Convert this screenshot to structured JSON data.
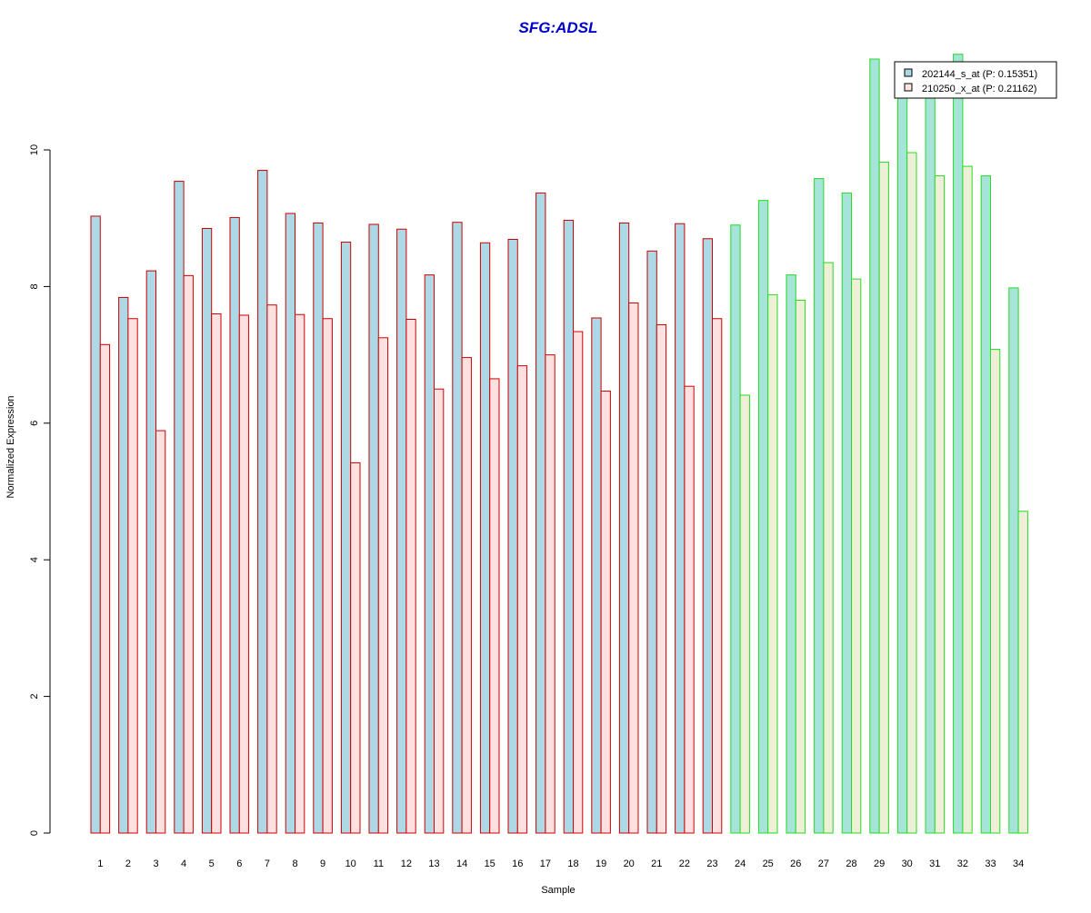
{
  "chart_data": {
    "type": "bar",
    "title": "SFG:ADSL",
    "xlabel": "Sample",
    "ylabel": "Normalized Expression",
    "ylim": [
      0,
      11.5
    ],
    "yticks": [
      0,
      2,
      4,
      6,
      8,
      10
    ],
    "categories": [
      "1",
      "2",
      "3",
      "4",
      "5",
      "6",
      "7",
      "8",
      "9",
      "10",
      "11",
      "12",
      "13",
      "14",
      "15",
      "16",
      "17",
      "18",
      "19",
      "20",
      "21",
      "22",
      "23",
      "24",
      "25",
      "26",
      "27",
      "28",
      "29",
      "30",
      "31",
      "32",
      "33",
      "34"
    ],
    "group_border_colors": [
      "#cc0000",
      "#cc0000",
      "#cc0000",
      "#cc0000",
      "#cc0000",
      "#cc0000",
      "#cc0000",
      "#cc0000",
      "#cc0000",
      "#cc0000",
      "#cc0000",
      "#cc0000",
      "#cc0000",
      "#cc0000",
      "#cc0000",
      "#cc0000",
      "#cc0000",
      "#cc0000",
      "#cc0000",
      "#cc0000",
      "#cc0000",
      "#cc0000",
      "#cc0000",
      "#22dd22",
      "#22dd22",
      "#22dd22",
      "#22dd22",
      "#22dd22",
      "#22dd22",
      "#22dd22",
      "#22dd22",
      "#22dd22",
      "#22dd22",
      "#22dd22"
    ],
    "series": [
      {
        "name": "202144_s_at (P: 0.15351)",
        "colors": [
          "#add8e6",
          "#add8e6",
          "#add8e6",
          "#add8e6",
          "#add8e6",
          "#add8e6",
          "#add8e6",
          "#add8e6",
          "#add8e6",
          "#add8e6",
          "#add8e6",
          "#add8e6",
          "#add8e6",
          "#add8e6",
          "#add8e6",
          "#add8e6",
          "#add8e6",
          "#add8e6",
          "#add8e6",
          "#add8e6",
          "#add8e6",
          "#add8e6",
          "#add8e6",
          "#a6e3d9",
          "#a6e3d9",
          "#a6e3d9",
          "#a6e3d9",
          "#a6e3d9",
          "#a6e3d9",
          "#a6e3d9",
          "#a6e3d9",
          "#a6e3d9",
          "#a6e3d9",
          "#a6e3d9"
        ],
        "legend_color": "#add8e6",
        "values": [
          9.03,
          7.84,
          8.23,
          9.54,
          8.85,
          9.01,
          9.7,
          9.07,
          8.93,
          8.65,
          8.91,
          8.84,
          8.17,
          8.94,
          8.64,
          8.69,
          9.37,
          8.97,
          7.54,
          8.93,
          8.52,
          8.92,
          8.7,
          8.9,
          9.26,
          8.17,
          9.58,
          9.37,
          11.33,
          10.85,
          10.9,
          11.4,
          9.62,
          7.98
        ]
      },
      {
        "name": "210250_x_at (P: 0.21162)",
        "colors": [
          "#ffe0e0",
          "#ffe0e0",
          "#ffe0e0",
          "#ffe0e0",
          "#ffe0e0",
          "#ffe0e0",
          "#ffe0e0",
          "#ffe0e0",
          "#ffe0e0",
          "#ffe0e0",
          "#ffe0e0",
          "#ffe0e0",
          "#ffe0e0",
          "#ffe0e0",
          "#ffe0e0",
          "#ffe0e0",
          "#ffe0e0",
          "#ffe0e0",
          "#ffe0e0",
          "#ffe0e0",
          "#ffe0e0",
          "#ffe0e0",
          "#ffe0e0",
          "#eeefd6",
          "#eeefd6",
          "#eeefd6",
          "#eeefd6",
          "#eeefd6",
          "#eeefd6",
          "#eeefd6",
          "#eeefd6",
          "#eeefd6",
          "#eeefd6",
          "#eeefd6"
        ],
        "legend_color": "#ffe4e1",
        "values": [
          7.15,
          7.53,
          5.89,
          8.16,
          7.6,
          7.58,
          7.73,
          7.59,
          7.53,
          5.42,
          7.25,
          7.52,
          6.5,
          6.96,
          6.65,
          6.84,
          7.0,
          7.34,
          6.47,
          7.76,
          7.44,
          6.54,
          7.53,
          6.41,
          7.88,
          7.8,
          8.35,
          8.11,
          9.82,
          9.96,
          9.62,
          9.76,
          7.08,
          4.71
        ]
      }
    ],
    "legend": {
      "position": "top-right"
    },
    "grid": false
  }
}
